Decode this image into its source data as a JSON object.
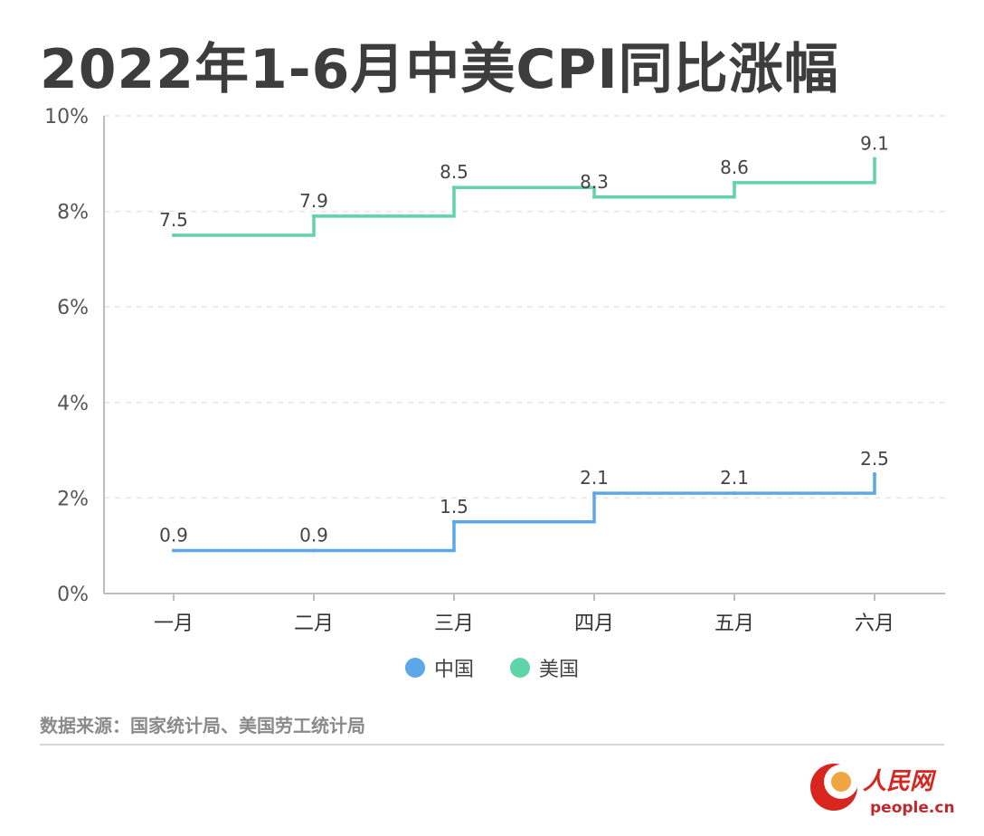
{
  "title": "2022年1-6月中美CPI同比涨幅",
  "legend": {
    "china": "中国",
    "usa": "美国"
  },
  "source": "数据来源：国家统计局、美国劳工统计局",
  "logo": {
    "name": "人民网",
    "domain": "people.cn"
  },
  "colors": {
    "china": "#5ba7ea",
    "usa": "#5fd4a9",
    "axis": "#bdbdbd",
    "grid": "#e6e6e6",
    "text": "#555555"
  },
  "chart_data": {
    "type": "line",
    "step": true,
    "title": "2022年1-6月中美CPI同比涨幅",
    "xlabel": "",
    "ylabel": "",
    "categories": [
      "一月",
      "二月",
      "三月",
      "四月",
      "五月",
      "六月"
    ],
    "y_ticks": [
      "0%",
      "2%",
      "4%",
      "6%",
      "8%",
      "10%"
    ],
    "ylim": [
      0,
      10
    ],
    "grid": true,
    "legend_position": "bottom-center",
    "series": [
      {
        "name": "中国",
        "key": "china",
        "values": [
          0.9,
          0.9,
          1.5,
          2.1,
          2.1,
          2.5
        ],
        "labels": [
          "0.9",
          "0.9",
          "1.5",
          "2.1",
          "2.1",
          "2.5"
        ]
      },
      {
        "name": "美国",
        "key": "usa",
        "values": [
          7.5,
          7.9,
          8.5,
          8.3,
          8.6,
          9.1
        ],
        "labels": [
          "7.5",
          "7.9",
          "8.5",
          "8.3",
          "8.6",
          "9.1"
        ]
      }
    ]
  }
}
